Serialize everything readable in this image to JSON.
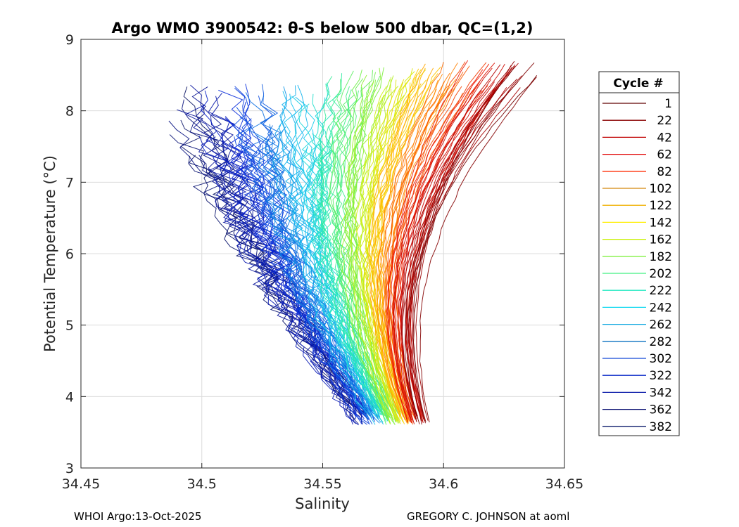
{
  "chart_data": {
    "type": "line",
    "title": "Argo WMO 3900542: θ-S below 500 dbar,  QC=(1,2)",
    "xlabel": "Salinity",
    "ylabel": "Potential Temperature (°C)",
    "xlim": [
      34.45,
      34.65
    ],
    "ylim": [
      3,
      9
    ],
    "xticks": [
      34.45,
      34.5,
      34.55,
      34.6,
      34.65
    ],
    "xtick_labels": [
      "34.45",
      "34.5",
      "34.55",
      "34.6",
      "34.65"
    ],
    "yticks": [
      3,
      4,
      5,
      6,
      7,
      8,
      9
    ],
    "ytick_labels": [
      "3",
      "4",
      "5",
      "6",
      "7",
      "8",
      "9"
    ],
    "grid": true,
    "legend": {
      "title": "Cycle #",
      "placement": "outside-right",
      "entries": [
        "1",
        "22",
        "42",
        "62",
        "82",
        "102",
        "122",
        "142",
        "162",
        "182",
        "202",
        "222",
        "242",
        "262",
        "282",
        "302",
        "322",
        "342",
        "362",
        "382"
      ],
      "colors": [
        "#600000",
        "#8a0000",
        "#c00000",
        "#e00000",
        "#ff2a00",
        "#d4880a",
        "#f0b000",
        "#ffee00",
        "#c8f000",
        "#80f040",
        "#40f080",
        "#20e8c0",
        "#10d8f0",
        "#10a8e0",
        "#0a70c0",
        "#1048d8",
        "#0a28c8",
        "#0818a8",
        "#060c70",
        "#0a1a6a"
      ]
    },
    "series_shape": {
      "description": "theta-S profiles below 500 dbar, one per cycle; each profile bends from the cold end near 3.6 C to the warm end above 7.4 C",
      "cycles_first_last": [
        1,
        382
      ],
      "cold_end_salinity_range": [
        34.565,
        34.592
      ],
      "warm_end_salinity_range_early": [
        34.62,
        34.636
      ],
      "warm_end_salinity_range_late": [
        34.478,
        34.5
      ],
      "temperature_range": [
        3.6,
        8.75
      ]
    },
    "footer_left": "WHOI Argo:13-Oct-2025",
    "footer_right": "GREGORY C. JOHNSON at aoml"
  }
}
